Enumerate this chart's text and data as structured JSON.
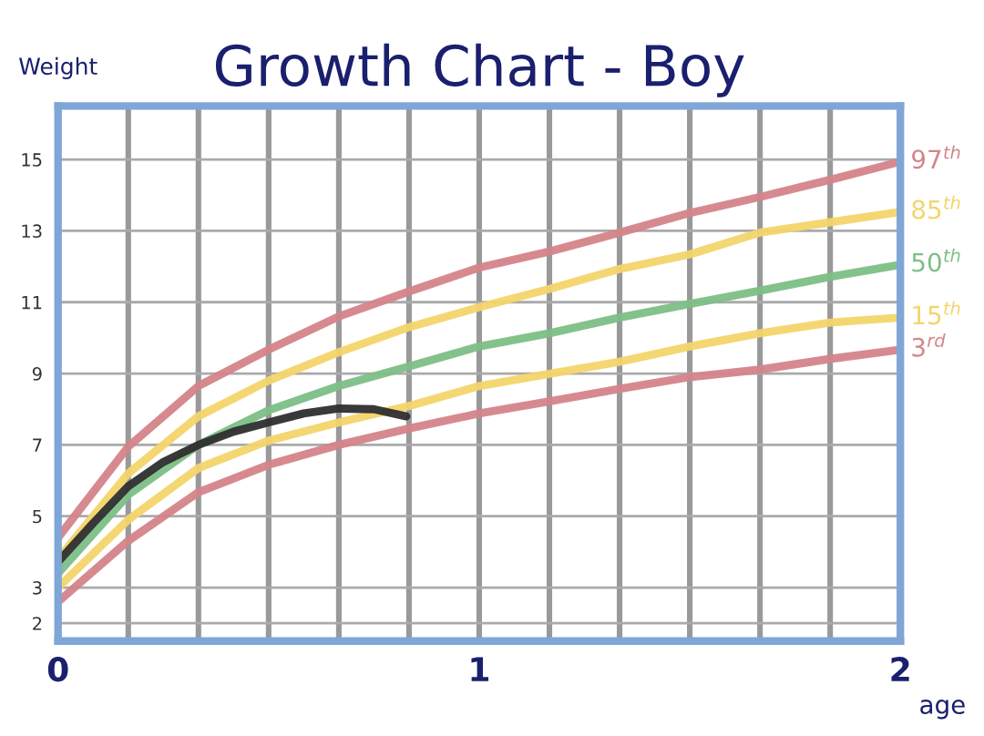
{
  "chart_data": {
    "type": "line",
    "title": "Growth Chart - Boy",
    "xlabel": "age",
    "ylabel": "Weight",
    "x": [
      0,
      0.1667,
      0.3333,
      0.5,
      0.6667,
      0.8333,
      1,
      1.1667,
      1.3333,
      1.5,
      1.6667,
      1.8333,
      2
    ],
    "series": [
      {
        "name": "97$^{th}$",
        "color": "#d4848a",
        "values": [
          4.4,
          6.95,
          8.65,
          9.67,
          10.6,
          11.3,
          11.97,
          12.42,
          12.95,
          13.5,
          13.95,
          14.43,
          14.94
        ]
      },
      {
        "name": "85$^{th}$",
        "color": "#f3d56a",
        "values": [
          3.8,
          6.2,
          7.8,
          8.8,
          9.6,
          10.3,
          10.86,
          11.37,
          11.93,
          12.34,
          12.95,
          13.24,
          13.53
        ]
      },
      {
        "name": "50$^{th}$",
        "color": "#7cbf86",
        "values": [
          3.4,
          5.6,
          7.0,
          7.97,
          8.65,
          9.2,
          9.76,
          10.13,
          10.57,
          10.95,
          11.32,
          11.71,
          12.05
        ]
      },
      {
        "name": "15$^{th}$",
        "color": "#f3d56a",
        "values": [
          3.0,
          4.9,
          6.35,
          7.12,
          7.63,
          8.09,
          8.65,
          8.99,
          9.33,
          9.76,
          10.13,
          10.43,
          10.57
        ]
      },
      {
        "name": "3$^{rd}$",
        "color": "#d4848a",
        "values": [
          2.6,
          4.31,
          5.67,
          6.44,
          7.0,
          7.46,
          7.88,
          8.22,
          8.57,
          8.9,
          9.11,
          9.41,
          9.67
        ]
      },
      {
        "color": "#2e2e2e",
        "x": [
          0,
          0.083,
          0.1667,
          0.25,
          0.3333,
          0.4167,
          0.5,
          0.5833,
          0.6667,
          0.75,
          0.827
        ],
        "values": [
          3.72,
          4.8,
          5.84,
          6.52,
          7.0,
          7.37,
          7.63,
          7.88,
          8.02,
          8.0,
          7.8
        ]
      }
    ],
    "xlim": [
      0,
      2
    ],
    "ylim": [
      1.5,
      16.5
    ],
    "xticks": [
      0,
      {
        "value": 0.1667,
        "label": null
      },
      {
        "value": 0.3333,
        "label": null
      },
      {
        "value": 0.5,
        "label": null
      },
      {
        "value": 0.6667,
        "label": null
      },
      {
        "value": 0.8333,
        "label": null
      },
      1,
      {
        "value": 1.1667,
        "label": null
      },
      {
        "value": 1.3333,
        "label": null
      },
      {
        "value": 1.5,
        "label": null
      },
      {
        "value": 1.6667,
        "label": null
      },
      {
        "value": 1.8333,
        "label": null
      },
      2
    ],
    "yticks": [
      2,
      3,
      5,
      7,
      9,
      11,
      13,
      15
    ],
    "grid": true,
    "legend": false,
    "marker": "none",
    "line_style": "solid"
  }
}
